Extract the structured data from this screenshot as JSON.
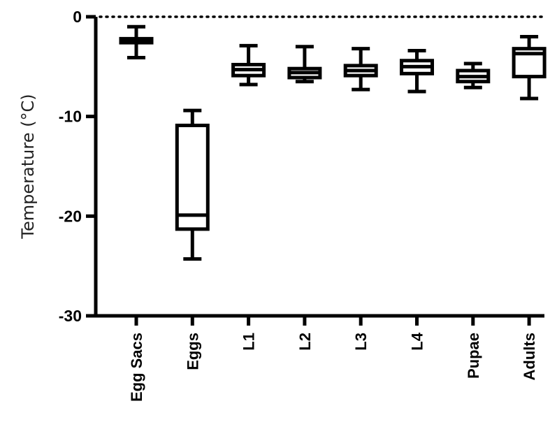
{
  "chart_data": {
    "type": "box",
    "title": "",
    "xlabel": "",
    "ylabel": "Temperature  (°C)",
    "ylim": [
      -30,
      0
    ],
    "yticks": [
      0,
      -10,
      -20,
      -30
    ],
    "ytick_labels": [
      "0",
      "-10",
      "-20",
      "-30"
    ],
    "zero_reference_line": "dotted",
    "grid": false,
    "colors": {
      "stroke": "#000000",
      "box_fill": "#ffffff"
    },
    "categories": [
      "Egg Sacs",
      "Eggs",
      "L1",
      "L2",
      "L3",
      "L4",
      "Pupae",
      "Adults"
    ],
    "boxes": [
      {
        "min": -4.1,
        "q1": -2.6,
        "median": -2.4,
        "q3": -2.2,
        "max": -1.0
      },
      {
        "min": -24.3,
        "q1": -21.3,
        "median": -19.9,
        "q3": -10.9,
        "max": -9.4
      },
      {
        "min": -6.8,
        "q1": -5.9,
        "median": -5.3,
        "q3": -4.8,
        "max": -2.9
      },
      {
        "min": -6.5,
        "q1": -6.1,
        "median": -5.6,
        "q3": -5.2,
        "max": -3.0
      },
      {
        "min": -7.3,
        "q1": -5.9,
        "median": -5.4,
        "q3": -4.9,
        "max": -3.2
      },
      {
        "min": -7.5,
        "q1": -5.7,
        "median": -5.0,
        "q3": -4.4,
        "max": -3.4
      },
      {
        "min": -7.1,
        "q1": -6.5,
        "median": -6.0,
        "q3": -5.4,
        "max": -4.7
      },
      {
        "min": -8.2,
        "q1": -6.0,
        "median": -3.7,
        "q3": -3.2,
        "max": -2.0
      }
    ]
  }
}
